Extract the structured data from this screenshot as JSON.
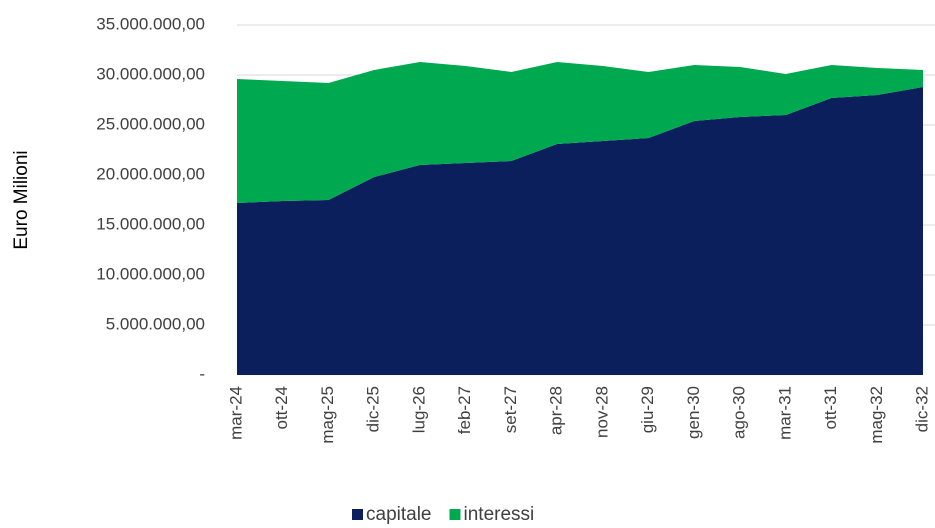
{
  "chart_data": {
    "type": "stacked_area",
    "y_label": "Euro Milioni",
    "categories": [
      "mar-24",
      "ott-24",
      "mag-25",
      "dic-25",
      "lug-26",
      "feb-27",
      "set-27",
      "apr-28",
      "nov-28",
      "giu-29",
      "gen-30",
      "ago-30",
      "mar-31",
      "ott-31",
      "mag-32",
      "dic-32"
    ],
    "series": [
      {
        "name": "capitale",
        "color": "#0a1f5c",
        "values": [
          17200000,
          17400000,
          17500000,
          19800000,
          21000000,
          21200000,
          21400000,
          23100000,
          23400000,
          23700000,
          25400000,
          25800000,
          26000000,
          27700000,
          28000000,
          28800000
        ]
      },
      {
        "name": "interessi",
        "color": "#00a84f",
        "values": [
          12400000,
          12000000,
          11700000,
          10700000,
          10300000,
          9700000,
          8900000,
          8200000,
          7500000,
          6600000,
          5600000,
          5000000,
          4100000,
          3300000,
          2700000,
          1700000
        ]
      }
    ],
    "ylim": [
      0,
      35000000
    ],
    "yticks": [
      {
        "value": 0,
        "label": "-"
      },
      {
        "value": 5000000,
        "label": "5.000.000,00"
      },
      {
        "value": 10000000,
        "label": "10.000.000,00"
      },
      {
        "value": 15000000,
        "label": "15.000.000,00"
      },
      {
        "value": 20000000,
        "label": "20.000.000,00"
      },
      {
        "value": 25000000,
        "label": "25.000.000,00"
      },
      {
        "value": 30000000,
        "label": "30.000.000,00"
      },
      {
        "value": 35000000,
        "label": "35.000.000,00"
      }
    ],
    "grid": true,
    "legend": "bottom"
  }
}
